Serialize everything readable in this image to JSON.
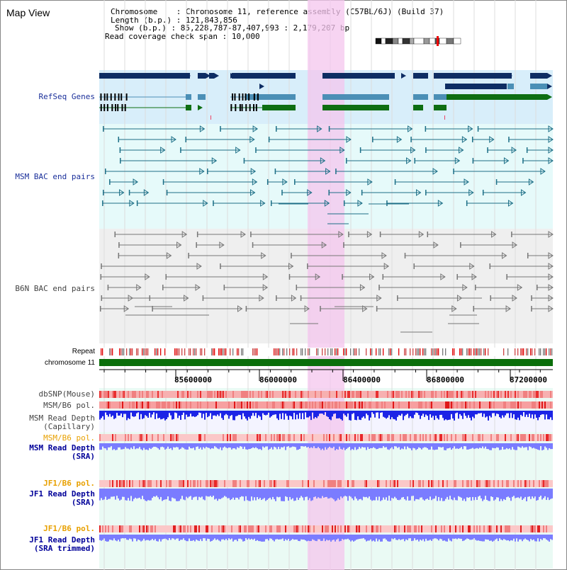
{
  "app": {
    "title": "Map View"
  },
  "info": {
    "chromosome_key": "Chromosome",
    "chromosome_value": "Chromosome 11, reference assembly (C57BL/6J) (Build 37)",
    "length_key": "Length (b.p.)",
    "length_value": "121,843,856",
    "show_key": "Show (b.p.)",
    "show_value": "85,228,787-87,407,993 : 2,179,207 bp",
    "span_key": "Read coverage check span",
    "span_value": "10,000"
  },
  "tracks": {
    "refseq": "RefSeq Genes",
    "msm_bac": "MSM BAC end pairs",
    "b6n_bac": "B6N BAC end pairs",
    "repeat": "Repeat",
    "chromosome": "chromosome 11",
    "dbsnp": "dbSNP(Mouse)",
    "msm_b6_pol_1": "MSM/B6 pol.",
    "msm_depth_cap_1": "MSM Read Depth",
    "msm_depth_cap_2": "(Capillary)",
    "msm_b6_pol_2": "MSM/B6 pol.",
    "msm_depth_sra_1": "MSM Read Depth",
    "msm_depth_sra_2": "(SRA)",
    "jf1_b6_pol_1": "JF1/B6 pol.",
    "jf1_depth_sra_1": "JF1 Read Depth",
    "jf1_depth_sra_2": "(SRA)",
    "jf1_b6_pol_2": "JF1/B6 pol.",
    "jf1_depth_trim_1": "JF1 Read Depth",
    "jf1_depth_trim_2": "(SRA trimmed)"
  },
  "axis": {
    "ticks": [
      "85600000",
      "86000000",
      "86400000",
      "86800000",
      "87200000"
    ]
  },
  "colors": {
    "refseq_bg": "#d8eefa",
    "bac_bg": "#e6fafa",
    "b6n_bg": "#efefef",
    "highlight": "#f4c6ee",
    "gene_navy": "#0e2d63",
    "gene_teal": "#4b8fb6",
    "gene_green": "#0e6e12",
    "msm_line": "#1d6f87",
    "b6n_line": "#777777",
    "chrom_bar": "#0a6e0a",
    "depth_blue": "#1c24e6",
    "depth_light": "#7a7cff"
  }
}
